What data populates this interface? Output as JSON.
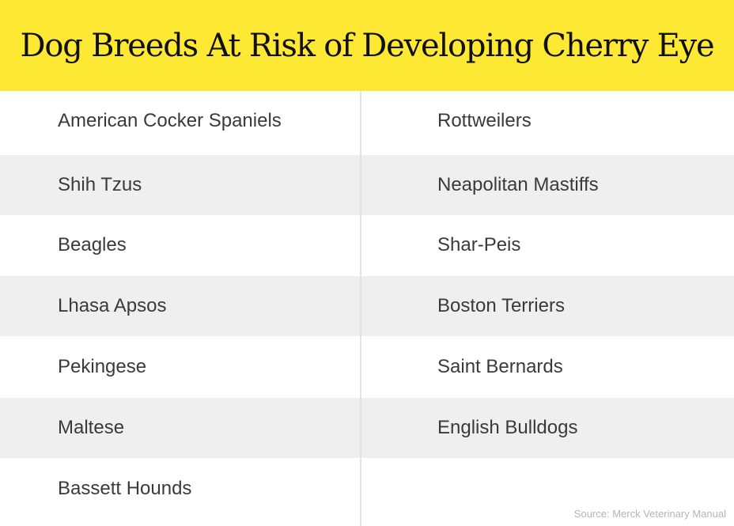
{
  "header": {
    "title": "Dog Breeds At Risk of Developing Cherry Eye",
    "background_color": "#fde933"
  },
  "table": {
    "rows": [
      {
        "left": "American Cocker Spaniels",
        "right": "Rottweilers"
      },
      {
        "left": "Shih Tzus",
        "right": "Neapolitan Mastiffs"
      },
      {
        "left": "Beagles",
        "right": "Shar-Peis"
      },
      {
        "left": "Lhasa Apsos",
        "right": "Boston Terriers"
      },
      {
        "left": "Pekingese",
        "right": "Saint Bernards"
      },
      {
        "left": "Maltese",
        "right": "English Bulldogs"
      },
      {
        "left": "Bassett Hounds",
        "right": ""
      }
    ],
    "stripe_color": "#efefef"
  },
  "footer": {
    "source": "Source: Merck Veterinary Manual"
  }
}
